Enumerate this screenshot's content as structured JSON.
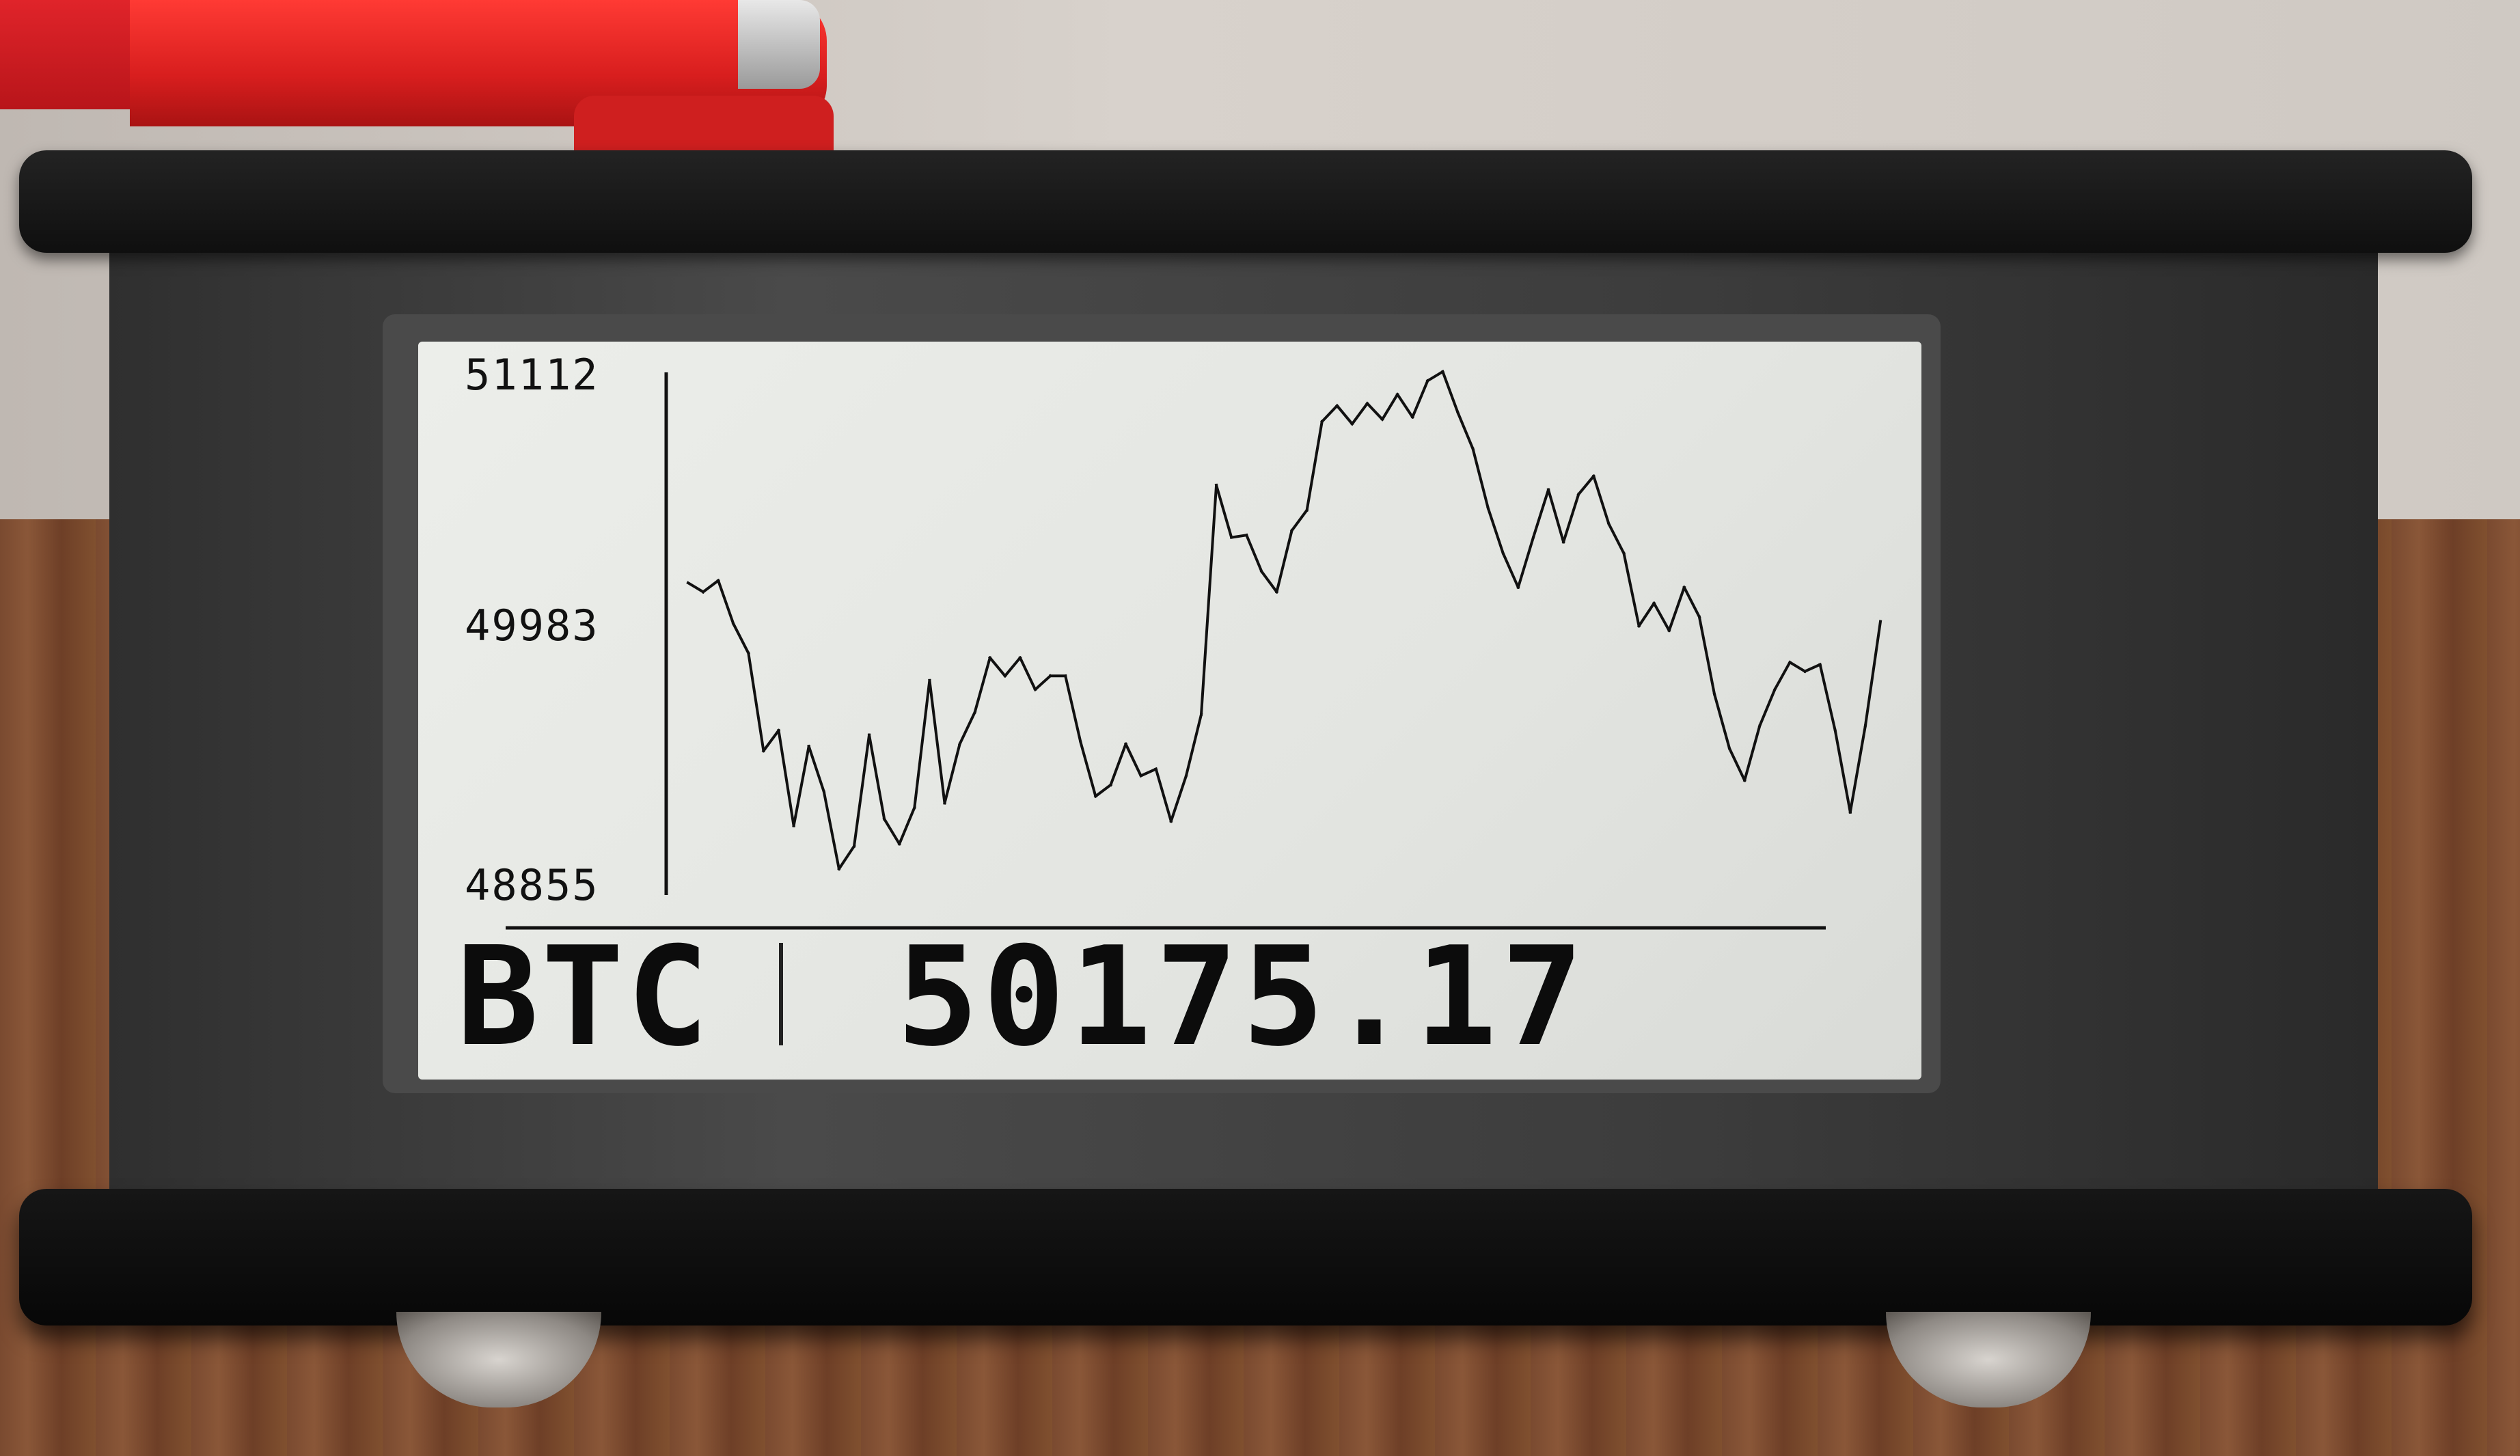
{
  "display": {
    "symbol": "BTC",
    "price": "50175.17"
  },
  "chart_data": {
    "type": "line",
    "y_tick_labels": [
      "51112",
      "49983",
      "48855"
    ],
    "ylim": [
      48855,
      51112
    ],
    "series": [
      {
        "values": [
          50170,
          50130,
          50180,
          49990,
          49860,
          49430,
          49520,
          49100,
          49450,
          49250,
          48910,
          49010,
          49500,
          49130,
          49020,
          49180,
          49740,
          49200,
          49460,
          49600,
          49840,
          49760,
          49840,
          49700,
          49760,
          49760,
          49470,
          49230,
          49280,
          49460,
          49320,
          49350,
          49120,
          49320,
          49590,
          50600,
          50370,
          50380,
          50220,
          50130,
          50400,
          50490,
          50880,
          50950,
          50870,
          50960,
          50890,
          51000,
          50900,
          51060,
          51100,
          50920,
          50760,
          50500,
          50300,
          50150,
          50370,
          50580,
          50350,
          50560,
          50640,
          50430,
          50300,
          49980,
          50080,
          49960,
          50150,
          50020,
          49680,
          49440,
          49300,
          49540,
          49700,
          49820,
          49780,
          49810,
          49520,
          49160,
          49540,
          50000
        ]
      }
    ]
  }
}
